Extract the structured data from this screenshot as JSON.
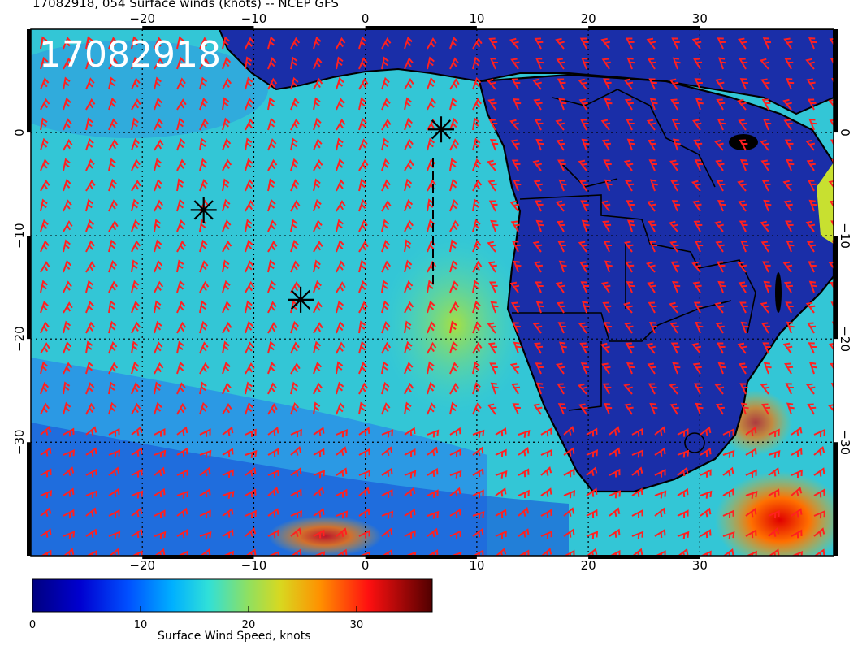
{
  "title": "17082918, 054 Surface winds (knots) -- NCEP GFS",
  "stamp": "17082918",
  "map": {
    "lon_range": [
      -30,
      42
    ],
    "lat_range": [
      -41,
      10
    ],
    "x_ticks": [
      "−20",
      "−10",
      "0",
      "10",
      "20",
      "30"
    ],
    "x_tick_values": [
      -20,
      -10,
      0,
      10,
      20,
      30
    ],
    "y_ticks": [
      "0",
      "−10",
      "−20",
      "−30"
    ],
    "y_tick_values": [
      0,
      -10,
      -20,
      -30
    ],
    "grid": "dotted 10-degree graticule",
    "markers": [
      {
        "symbol": "asterisk",
        "lon": -14.5,
        "lat": -7.5
      },
      {
        "symbol": "asterisk",
        "lon": -5.8,
        "lat": -16.2
      },
      {
        "symbol": "asterisk",
        "lon": 6.8,
        "lat": 0.3
      }
    ],
    "barb_color": "#ff2020",
    "land_outline_color": "#000000"
  },
  "colorbar": {
    "label": "Surface Wind Speed, knots",
    "ticks": [
      "0",
      "10",
      "20",
      "30"
    ],
    "tick_values": [
      0,
      10,
      20,
      30
    ],
    "range": [
      0,
      37
    ],
    "colors": [
      "#000080",
      "#0000c8",
      "#0060ff",
      "#00c0ff",
      "#40e0d0",
      "#c8d820",
      "#ff9000",
      "#ff1010",
      "#a00000",
      "#500000"
    ]
  }
}
